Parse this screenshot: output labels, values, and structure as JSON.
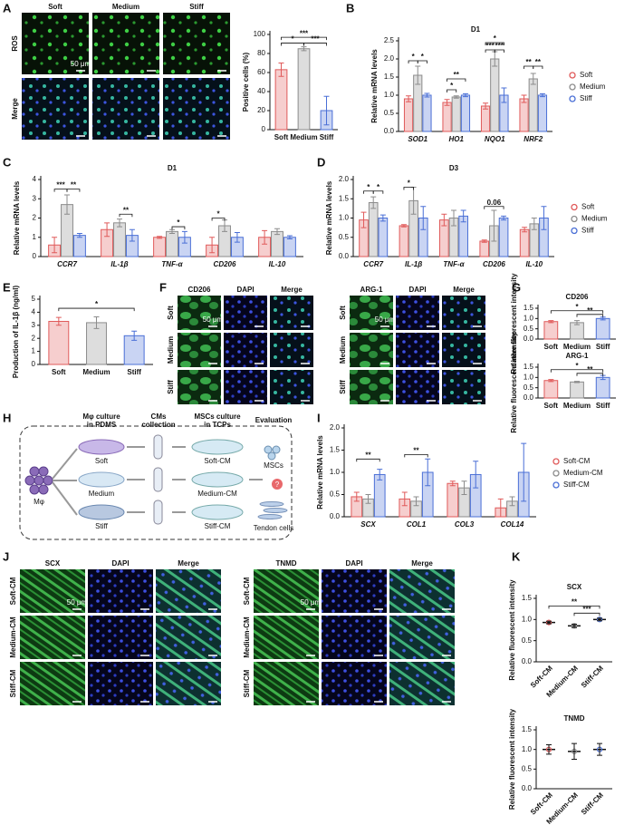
{
  "panels": [
    "A",
    "B",
    "C",
    "D",
    "E",
    "F",
    "G",
    "H",
    "I",
    "J",
    "K"
  ],
  "images": {
    "A": {
      "columns": [
        "Soft",
        "Medium",
        "Stiff"
      ],
      "rows": [
        "ROS",
        "Merge"
      ],
      "scale": "50 μm"
    },
    "F_left": {
      "columns": [
        "CD206",
        "DAPI",
        "Merge"
      ],
      "rows": [
        "Soft",
        "Medium",
        "Stiff"
      ],
      "scale": "50 μm"
    },
    "F_right": {
      "columns": [
        "ARG-1",
        "DAPI",
        "Merge"
      ],
      "rows": [
        "Soft",
        "Medium",
        "Stiff"
      ],
      "scale": "50 μm"
    },
    "J_left": {
      "columns": [
        "SCX",
        "DAPI",
        "Merge"
      ],
      "rows": [
        "Soft-CM",
        "Medium-CM",
        "Stiff-CM"
      ],
      "scale": "50 μm"
    },
    "J_right": {
      "columns": [
        "TNMD",
        "DAPI",
        "Merge"
      ],
      "rows": [
        "Soft-CM",
        "Medium-CM",
        "Stiff-CM"
      ],
      "scale": "50 μm"
    }
  },
  "diagram": {
    "steps": [
      [
        "Mφ culture",
        "in PDMS"
      ],
      [
        "CMs",
        "collection"
      ],
      [
        "MSCs culture",
        "in TCPs"
      ],
      [
        "Evaluation"
      ]
    ],
    "cell": "Mφ",
    "substrates": [
      "Soft",
      "Medium",
      "Stiff"
    ],
    "plates": [
      "Soft-CM",
      "Medium-CM",
      "Stiff-CM"
    ],
    "target": "MSCs",
    "question": "?",
    "result": "Tendon cells"
  },
  "chart_data": [
    {
      "type": "bar",
      "ylabel": "Positive cells (%)",
      "categories": [
        "Soft",
        "Medium",
        "Stiff"
      ],
      "values": [
        63,
        85,
        20
      ],
      "errors": [
        7,
        2,
        15
      ],
      "colors": [
        "#e05a5a",
        "#8c8c8c",
        "#4a6fd6"
      ],
      "ylim": [
        0,
        100
      ],
      "yticks": [
        0,
        20,
        40,
        60,
        80,
        100
      ],
      "annotations": [
        "***",
        "*",
        "***"
      ]
    },
    {
      "type": "bar",
      "title": "D1",
      "ylabel": "Relative mRNA levels",
      "categories": [
        "SOD1",
        "HO1",
        "NQO1",
        "NRF2"
      ],
      "series": [
        {
          "name": "Soft",
          "color": "#e05a5a",
          "values": [
            0.9,
            0.8,
            0.7,
            0.9
          ],
          "errors": [
            0.08,
            0.08,
            0.08,
            0.1
          ]
        },
        {
          "name": "Medium",
          "color": "#8c8c8c",
          "values": [
            1.55,
            0.95,
            2.0,
            1.45
          ],
          "errors": [
            0.25,
            0.03,
            0.2,
            0.15
          ]
        },
        {
          "name": "Stiff",
          "color": "#4a6fd6",
          "values": [
            1.0,
            1.0,
            1.0,
            1.0
          ],
          "errors": [
            0.05,
            0.04,
            0.2,
            0.04
          ]
        }
      ],
      "ylim": [
        0,
        2.5
      ],
      "yticks": [
        {
          "value": 0,
          "label": "0.0"
        },
        0.5,
        {
          "value": 1,
          "label": "1.0"
        },
        1.5,
        {
          "value": 2,
          "label": "2.0"
        },
        2.5
      ],
      "legend": "right",
      "annotations": [
        "*",
        "*",
        "*",
        "**",
        "*",
        "***",
        "***",
        "**",
        "**"
      ]
    },
    {
      "type": "bar",
      "title": "D1",
      "ylabel": "Relative mRNA levels",
      "categories": [
        "CCR7",
        "IL-1β",
        "TNF-α",
        "CD206",
        "IL-10"
      ],
      "series": [
        {
          "name": "Soft",
          "color": "#e05a5a",
          "values": [
            0.6,
            1.4,
            1.0,
            0.6,
            1.0
          ],
          "errors": [
            0.4,
            0.35,
            0.05,
            0.4,
            0.35
          ]
        },
        {
          "name": "Medium",
          "color": "#8c8c8c",
          "values": [
            2.7,
            1.75,
            1.3,
            1.6,
            1.3
          ],
          "errors": [
            0.5,
            0.2,
            0.1,
            0.3,
            0.15
          ]
        },
        {
          "name": "Stiff",
          "color": "#4a6fd6",
          "values": [
            1.1,
            1.1,
            1.0,
            1.0,
            1.0
          ],
          "errors": [
            0.1,
            0.3,
            0.3,
            0.25,
            0.08
          ]
        }
      ],
      "ylim": [
        0,
        4
      ],
      "yticks": [
        0,
        1,
        2,
        3,
        4
      ],
      "annotations": [
        "***",
        "**",
        "**",
        "*",
        "*"
      ]
    },
    {
      "type": "bar",
      "title": "D3",
      "ylabel": "Relative mRNA levels",
      "categories": [
        "CCR7",
        "IL-1β",
        "TNF-α",
        "CD206",
        "IL-10"
      ],
      "series": [
        {
          "name": "Soft",
          "color": "#e05a5a",
          "values": [
            0.95,
            0.8,
            0.95,
            0.4,
            0.7
          ],
          "errors": [
            0.2,
            0.03,
            0.15,
            0.03,
            0.06
          ]
        },
        {
          "name": "Medium",
          "color": "#8c8c8c",
          "values": [
            1.4,
            1.45,
            1.0,
            0.8,
            0.85
          ],
          "errors": [
            0.15,
            0.35,
            0.2,
            0.4,
            0.15
          ]
        },
        {
          "name": "Stiff",
          "color": "#4a6fd6",
          "values": [
            1.0,
            1.0,
            1.05,
            1.0,
            1.0
          ],
          "errors": [
            0.08,
            0.3,
            0.15,
            0.05,
            0.3
          ]
        }
      ],
      "ylim": [
        0,
        2
      ],
      "yticks": [
        {
          "value": 0,
          "label": "0.0"
        },
        0.5,
        {
          "value": 1,
          "label": "1.0"
        },
        1.5,
        {
          "value": 2,
          "label": "2.0"
        }
      ],
      "legend": "right",
      "annotations": [
        "*",
        "*",
        "*",
        "0.06"
      ]
    },
    {
      "type": "bar",
      "ylabel": "Production of IL-1β (ng/ml)",
      "categories": [
        "Soft",
        "Medium",
        "Stiff"
      ],
      "values": [
        3.3,
        3.2,
        2.2
      ],
      "errors": [
        0.3,
        0.45,
        0.35
      ],
      "colors": [
        "#e05a5a",
        "#8c8c8c",
        "#4a6fd6"
      ],
      "ylim": [
        0,
        5
      ],
      "yticks": [
        0,
        1,
        2,
        3,
        4,
        5
      ],
      "annotations": [
        "*"
      ]
    },
    {
      "type": "bar",
      "title": "CD206",
      "ylabel": "Relative fluorescent intensity",
      "categories": [
        "Soft",
        "Medium",
        "Stiff"
      ],
      "values": [
        0.85,
        0.8,
        1.0
      ],
      "errors": [
        0.05,
        0.1,
        0.07
      ],
      "colors": [
        "#e05a5a",
        "#8c8c8c",
        "#4a6fd6"
      ],
      "ylim": [
        0,
        1.5
      ],
      "yticks": [
        {
          "value": 0,
          "label": "0.0"
        },
        0.5,
        {
          "value": 1,
          "label": "1.0"
        },
        1.5
      ],
      "annotations": [
        "*",
        "**"
      ]
    },
    {
      "type": "bar",
      "title": "ARG-1",
      "ylabel": "Relative fluorescent intensity",
      "categories": [
        "Soft",
        "Medium",
        "Stiff"
      ],
      "values": [
        0.85,
        0.78,
        1.0
      ],
      "errors": [
        0.05,
        0.03,
        0.1
      ],
      "colors": [
        "#e05a5a",
        "#8c8c8c",
        "#4a6fd6"
      ],
      "ylim": [
        0,
        1.5
      ],
      "yticks": [
        {
          "value": 0,
          "label": "0.0"
        },
        0.5,
        {
          "value": 1,
          "label": "1.0"
        },
        1.5
      ],
      "annotations": [
        "*",
        "**"
      ]
    },
    {
      "type": "bar",
      "ylabel": "Relative mRNA levels",
      "categories": [
        "SCX",
        "COL1",
        "COL3",
        "COL14"
      ],
      "series": [
        {
          "name": "Soft-CM",
          "color": "#e05a5a",
          "values": [
            0.45,
            0.4,
            0.75,
            0.2
          ],
          "errors": [
            0.1,
            0.15,
            0.05,
            0.2
          ]
        },
        {
          "name": "Medium-CM",
          "color": "#8c8c8c",
          "values": [
            0.4,
            0.35,
            0.65,
            0.35
          ],
          "errors": [
            0.1,
            0.1,
            0.15,
            0.1
          ]
        },
        {
          "name": "Stiff-CM",
          "color": "#4a6fd6",
          "values": [
            0.95,
            1.0,
            0.95,
            1.0
          ],
          "errors": [
            0.12,
            0.3,
            0.3,
            0.65
          ]
        }
      ],
      "ylim": [
        0,
        2
      ],
      "yticks": [
        {
          "value": 0,
          "label": "0.0"
        },
        0.5,
        {
          "value": 1,
          "label": "1.0"
        },
        1.5,
        {
          "value": 2,
          "label": "2.0"
        }
      ],
      "legend": "right",
      "annotations": [
        "**",
        "**"
      ]
    },
    {
      "type": "dot",
      "title": "SCX",
      "ylabel": "Relative fluorescent intensity",
      "categories": [
        "Soft-CM",
        "Medium-CM",
        "Stiff-CM"
      ],
      "values": [
        0.93,
        0.85,
        1.0
      ],
      "errors": [
        0.03,
        0.04,
        0.03
      ],
      "colors": [
        "#e05a5a",
        "#8c8c8c",
        "#4a6fd6"
      ],
      "ylim": [
        0,
        1.5
      ],
      "yticks": [
        {
          "value": 0,
          "label": "0.0"
        },
        0.5,
        {
          "value": 1,
          "label": "1.0"
        },
        1.5
      ],
      "annotations": [
        "**",
        "***"
      ]
    },
    {
      "type": "dot",
      "title": "TNMD",
      "ylabel": "Relative fluorescent intensity",
      "categories": [
        "Soft-CM",
        "Medium-CM",
        "Stiff-CM"
      ],
      "values": [
        1.0,
        0.95,
        1.0
      ],
      "errors": [
        0.12,
        0.2,
        0.15
      ],
      "colors": [
        "#e05a5a",
        "#8c8c8c",
        "#4a6fd6"
      ],
      "ylim": [
        0,
        1.5
      ],
      "yticks": [
        {
          "value": 0,
          "label": "0.0"
        },
        0.5,
        {
          "value": 1,
          "label": "1.0"
        },
        1.5
      ],
      "annotations": []
    }
  ]
}
